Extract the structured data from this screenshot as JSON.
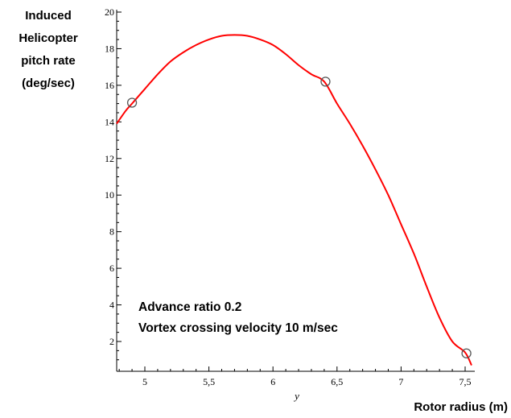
{
  "chart_data": {
    "type": "line",
    "ylabel_lines": [
      "Induced",
      "Helicopter",
      "pitch rate",
      "(deg/sec)"
    ],
    "xlabel": "Rotor radius (m)",
    "axis_variable": "y",
    "xlim": [
      4.8,
      7.55
    ],
    "ylim": [
      0.5,
      20
    ],
    "x_ticks": [
      5,
      5.5,
      6,
      6.5,
      7,
      7.5
    ],
    "x_tick_labels": [
      "5",
      "5,5",
      "6",
      "6,5",
      "7",
      "7,5"
    ],
    "y_ticks": [
      2,
      4,
      6,
      8,
      10,
      12,
      14,
      16,
      18,
      20
    ],
    "y_tick_labels": [
      "2",
      "4",
      "6",
      "8",
      "10",
      "12",
      "14",
      "16",
      "18",
      "20"
    ],
    "annotations": [
      "Advance ratio 0.2",
      "Vortex crossing velocity 10 m/sec"
    ],
    "series": [
      {
        "x": [
          4.78,
          4.85,
          4.9,
          5.0,
          5.1,
          5.2,
          5.3,
          5.4,
          5.5,
          5.6,
          5.7,
          5.8,
          5.9,
          6.0,
          6.1,
          6.2,
          6.3,
          6.4,
          6.5,
          6.6,
          6.7,
          6.8,
          6.9,
          7.0,
          7.1,
          7.2,
          7.3,
          7.4,
          7.5,
          7.55
        ],
        "y": [
          13.9,
          14.6,
          15.0,
          15.8,
          16.6,
          17.3,
          17.8,
          18.2,
          18.5,
          18.7,
          18.75,
          18.7,
          18.5,
          18.2,
          17.7,
          17.1,
          16.6,
          16.2,
          15.0,
          13.9,
          12.7,
          11.4,
          10.0,
          8.4,
          6.8,
          5.0,
          3.3,
          2.0,
          1.4,
          0.7
        ],
        "color": "#ff0000"
      }
    ],
    "markers": [
      {
        "x": 4.9,
        "y": 15.05
      },
      {
        "x": 6.41,
        "y": 16.2
      },
      {
        "x": 7.51,
        "y": 1.35
      }
    ],
    "grid": false
  }
}
